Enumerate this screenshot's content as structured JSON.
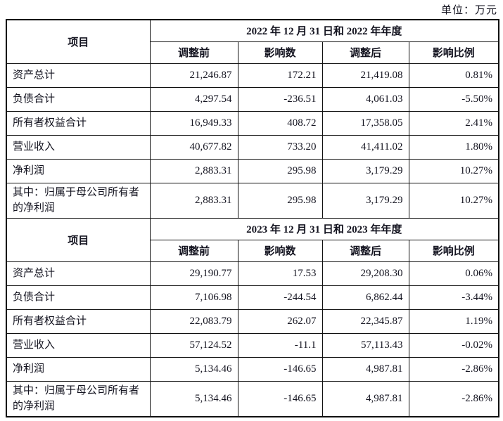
{
  "unit_label": "单位：万元",
  "table": {
    "item_header": "项目",
    "sub_headers": [
      "调整前",
      "影响数",
      "调整后",
      "影响比例"
    ],
    "sections": [
      {
        "period_header": "2022 年 12 月 31 日和 2022 年年度",
        "rows": [
          {
            "item": "资产总计",
            "before": "21,246.87",
            "impact": "172.21",
            "after": "21,419.08",
            "ratio": "0.81%"
          },
          {
            "item": "负债合计",
            "before": "4,297.54",
            "impact": "-236.51",
            "after": "4,061.03",
            "ratio": "-5.50%"
          },
          {
            "item": "所有者权益合计",
            "before": "16,949.33",
            "impact": "408.72",
            "after": "17,358.05",
            "ratio": "2.41%"
          },
          {
            "item": "营业收入",
            "before": "40,677.82",
            "impact": "733.20",
            "after": "41,411.02",
            "ratio": "1.80%"
          },
          {
            "item": "净利润",
            "before": "2,883.31",
            "impact": "295.98",
            "after": "3,179.29",
            "ratio": "10.27%"
          },
          {
            "item": "其中：归属于母公司所有者的净利润",
            "before": "2,883.31",
            "impact": "295.98",
            "after": "3,179.29",
            "ratio": "10.27%"
          }
        ]
      },
      {
        "period_header": "2023 年 12 月 31 日和 2023 年年度",
        "rows": [
          {
            "item": "资产总计",
            "before": "29,190.77",
            "impact": "17.53",
            "after": "29,208.30",
            "ratio": "0.06%"
          },
          {
            "item": "负债合计",
            "before": "7,106.98",
            "impact": "-244.54",
            "after": "6,862.44",
            "ratio": "-3.44%"
          },
          {
            "item": "所有者权益合计",
            "before": "22,083.79",
            "impact": "262.07",
            "after": "22,345.87",
            "ratio": "1.19%"
          },
          {
            "item": "营业收入",
            "before": "57,124.52",
            "impact": "-11.1",
            "after": "57,113.43",
            "ratio": "-0.02%"
          },
          {
            "item": "净利润",
            "before": "5,134.46",
            "impact": "-146.65",
            "after": "4,987.81",
            "ratio": "-2.86%"
          },
          {
            "item": "其中：归属于母公司所有者的净利润",
            "before": "5,134.46",
            "impact": "-146.65",
            "after": "4,987.81",
            "ratio": "-2.86%"
          }
        ]
      }
    ]
  }
}
